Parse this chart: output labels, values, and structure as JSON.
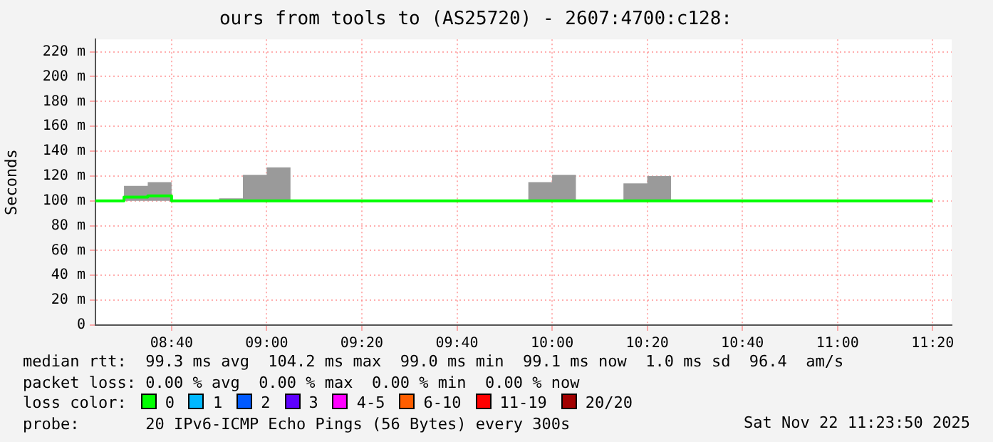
{
  "chart_data": {
    "type": "line",
    "title": "ours from tools to (AS25720) - 2607:4700:c128:",
    "ylabel": "Seconds",
    "x": [
      8.4,
      8.5,
      8.5,
      8.5833,
      8.5833,
      8.6667,
      8.6667,
      8.8333,
      8.9167,
      8.9167,
      9,
      9,
      9.0833,
      9.0833,
      9.9167,
      10,
      10,
      10.0833,
      10.0833,
      10.25,
      10.3333,
      10.3333,
      10.4167,
      10.4167,
      11.3333
    ],
    "series": [
      {
        "name": "0",
        "color": "#00ff00",
        "values": [
          100,
          100,
          103,
          103,
          104,
          104,
          100,
          100,
          100,
          100,
          100,
          100,
          100,
          100,
          100,
          100,
          100,
          100,
          100,
          100,
          100,
          100,
          100,
          100,
          100
        ],
        "lower": [
          null,
          null,
          100,
          100,
          100,
          100,
          null,
          100,
          100,
          100,
          100,
          100,
          100,
          null,
          100,
          100,
          100,
          100,
          null,
          100,
          100,
          100,
          100,
          null,
          null
        ],
        "upper": [
          null,
          null,
          112,
          112,
          115,
          115,
          null,
          102,
          102,
          121,
          121,
          127,
          127,
          null,
          115,
          115,
          121,
          121,
          null,
          114,
          114,
          120,
          120,
          null,
          null
        ]
      },
      {
        "name": "1",
        "color": "#00b8ff",
        "values": [
          null,
          null,
          null,
          null,
          null,
          null,
          null,
          null,
          null,
          null,
          null,
          null,
          null,
          null,
          null,
          null,
          null,
          null,
          null,
          null,
          null,
          null,
          null,
          null,
          null
        ]
      },
      {
        "name": "2",
        "color": "#0059ff",
        "values": [
          null,
          null,
          null,
          null,
          null,
          null,
          null,
          null,
          null,
          null,
          null,
          null,
          null,
          null,
          null,
          null,
          null,
          null,
          null,
          null,
          null,
          null,
          null,
          null,
          null
        ]
      },
      {
        "name": "3",
        "color": "#5e00ff",
        "values": [
          null,
          null,
          null,
          null,
          null,
          null,
          null,
          null,
          null,
          null,
          null,
          null,
          null,
          null,
          null,
          null,
          null,
          null,
          null,
          null,
          null,
          null,
          null,
          null,
          null
        ]
      },
      {
        "name": "4-5",
        "color": "#ff00ff",
        "values": [
          null,
          null,
          null,
          null,
          null,
          null,
          null,
          null,
          null,
          null,
          null,
          null,
          null,
          null,
          null,
          null,
          null,
          null,
          null,
          null,
          null,
          null,
          null,
          null,
          null
        ]
      },
      {
        "name": "6-10",
        "color": "#ff5e00",
        "values": [
          null,
          null,
          null,
          null,
          null,
          null,
          null,
          null,
          null,
          null,
          null,
          null,
          null,
          null,
          null,
          null,
          null,
          null,
          null,
          null,
          null,
          null,
          null,
          null,
          null
        ]
      },
      {
        "name": "11-19",
        "color": "#ff0000",
        "values": [
          null,
          null,
          null,
          null,
          null,
          null,
          null,
          null,
          null,
          null,
          null,
          null,
          null,
          null,
          null,
          null,
          null,
          null,
          null,
          null,
          null,
          null,
          null,
          null,
          null
        ]
      },
      {
        "name": "20/20",
        "color": "#a10000",
        "values": [
          null,
          null,
          null,
          null,
          null,
          null,
          null,
          null,
          null,
          null,
          null,
          null,
          null,
          null,
          null,
          null,
          null,
          null,
          null,
          null,
          null,
          null,
          null,
          null,
          null
        ]
      }
    ],
    "xlim": [
      8.4,
      11.4
    ],
    "xticks": [
      {
        "value": 8.6667,
        "label": "08:40"
      },
      {
        "value": 9,
        "label": "09:00"
      },
      {
        "value": 9.3333,
        "label": "09:20"
      },
      {
        "value": 9.6667,
        "label": "09:40"
      },
      {
        "value": 10,
        "label": "10:00"
      },
      {
        "value": 10.3333,
        "label": "10:20"
      },
      {
        "value": 10.6667,
        "label": "10:40"
      },
      {
        "value": 11,
        "label": "11:00"
      },
      {
        "value": 11.3333,
        "label": "11:20"
      }
    ],
    "ylim": [
      0,
      230
    ],
    "yticks": [
      0,
      {
        "value": 20,
        "label": "20 m"
      },
      {
        "value": 40,
        "label": "40 m"
      },
      {
        "value": 60,
        "label": "60 m"
      },
      {
        "value": 80,
        "label": "80 m"
      },
      {
        "value": 100,
        "label": "100 m"
      },
      {
        "value": 120,
        "label": "120 m"
      },
      {
        "value": 140,
        "label": "140 m"
      },
      {
        "value": 160,
        "label": "160 m"
      },
      {
        "value": 180,
        "label": "180 m"
      },
      {
        "value": 200,
        "label": "200 m"
      },
      {
        "value": 220,
        "label": "220 m"
      }
    ],
    "grid": true,
    "legend": "bottom",
    "annotations": [
      "median rtt:  99.3 ms avg  104.2 ms max  99.0 ms min  99.1 ms now  1.0 ms sd  96.4  am/s",
      "packet loss: 0.00 % avg  0.00 % max  0.00 % min  0.00 % now",
      "loss color:",
      "probe:       20 IPv6-ICMP Echo Pings (56 Bytes) every 300s",
      "Sat Nov 22 11:23:50 2025"
    ]
  }
}
